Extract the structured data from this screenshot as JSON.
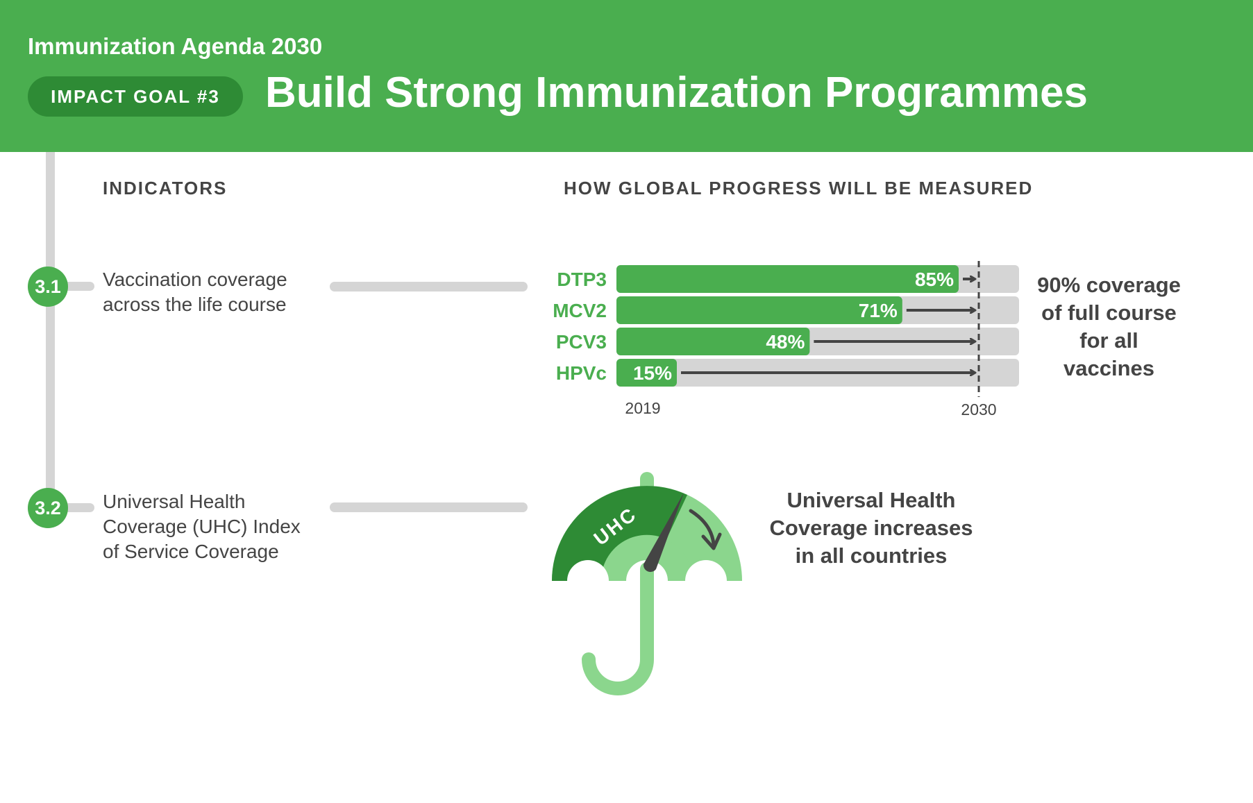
{
  "header": {
    "agenda": "Immunization Agenda 2030",
    "badge": "IMPACT GOAL #3",
    "title": "Build Strong Immunization Programmes"
  },
  "columns": {
    "indicators": "INDICATORS",
    "measured": "HOW GLOBAL PROGRESS WILL BE MEASURED"
  },
  "indicators": [
    {
      "number": "3.1",
      "lines": [
        "Vaccination coverage",
        "across the life course"
      ]
    },
    {
      "number": "3.2",
      "lines": [
        "Universal Health",
        "Coverage (UHC) Index",
        "of Service Coverage"
      ]
    }
  ],
  "colors": {
    "green": "#4aae4f",
    "dark_green": "#2e8b35",
    "light_green": "#8bd68d",
    "gray": "#d5d5d5",
    "text": "#444444",
    "arrow": "#444444"
  },
  "chart_data": {
    "type": "bar",
    "orientation": "horizontal",
    "categories": [
      "DTP3",
      "MCV2",
      "PCV3",
      "HPVc"
    ],
    "values": [
      85,
      71,
      48,
      15
    ],
    "value_labels": [
      "85%",
      "71%",
      "48%",
      "15%"
    ],
    "target": 90,
    "xlim": [
      0,
      100
    ],
    "start_label": "2019",
    "end_label": "2030"
  },
  "target_text": [
    "90% coverage",
    "of full course",
    "for all",
    "vaccines"
  ],
  "uhc": {
    "gauge_label": "UHC",
    "text": [
      "Universal Health",
      "Coverage increases",
      "in all countries"
    ]
  }
}
